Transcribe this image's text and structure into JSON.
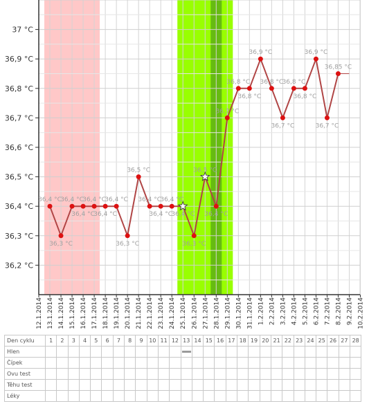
{
  "chart_data": {
    "type": "line",
    "x": [
      "12.1.2014",
      "13.1.2014",
      "14.1.2014",
      "15.1.2014",
      "16.1.2014",
      "17.1.2014",
      "18.1.2014",
      "19.1.2014",
      "20.1.2014",
      "21.1.2014",
      "22.1.2014",
      "23.1.2014",
      "24.1.2014",
      "25.1.2014",
      "26.1.2014",
      "27.1.2014",
      "28.1.2014",
      "29.1.2014",
      "30.1.2014",
      "31.1.2014",
      "1.2.2014",
      "2.2.2014",
      "3.2.2014",
      "4.2.2014",
      "5.2.2014",
      "6.2.2014",
      "7.2.2014",
      "8.2.2014",
      "9.2.2014",
      "10.2.2014"
    ],
    "series": [
      {
        "values": [
          null,
          36.4,
          36.3,
          36.4,
          36.4,
          36.4,
          36.4,
          36.4,
          36.3,
          36.5,
          36.4,
          36.4,
          36.4,
          36.4,
          36.3,
          36.5,
          36.4,
          36.7,
          36.8,
          36.8,
          36.9,
          36.8,
          36.7,
          36.8,
          36.8,
          36.9,
          36.7,
          36.85,
          null,
          null
        ],
        "labels": [
          "",
          "36,4 °C",
          "36,3 °C",
          "36,4 °C",
          "36,4 °C",
          "36,4 °C",
          "36,4 °C",
          "36,4 °C",
          "36,3 °C",
          "36,5 °C",
          "36,4 °C",
          "36,4 °C",
          "36,4 °C",
          "36,4 °C",
          "36,3 °C",
          "36,5 °C",
          "36,4 °C",
          "36,7 °C",
          "36,8 °C",
          "36,8 °C",
          "36,9 °C",
          "36,8 °C",
          "36,7 °C",
          "36,8 °C",
          "36,8 °C",
          "36,9 °C",
          "36,7 °C",
          "36,85 °C",
          "",
          ""
        ],
        "label_side": [
          "",
          "above",
          "below",
          "above",
          "below",
          "above",
          "below",
          "above",
          "below",
          "above",
          "above",
          "below",
          "above",
          "below",
          "below",
          "above",
          "below",
          "above",
          "above",
          "below",
          "above",
          "above",
          "below",
          "above",
          "below",
          "above",
          "below",
          "above",
          "",
          ""
        ],
        "star_markers": [
          "25.1.2014",
          "27.1.2014"
        ]
      }
    ],
    "y_ticks": [
      36.2,
      36.3,
      36.4,
      36.5,
      36.6,
      36.7,
      36.8,
      36.9,
      37.0
    ],
    "y_tick_labels": [
      "36,2 °C",
      "36,3 °C",
      "36,4 °C",
      "36,5 °C",
      "36,6 °C",
      "36,7 °C",
      "36,8 °C",
      "36,9 °C",
      "37 °C"
    ],
    "ylim": [
      36.1,
      37.1
    ],
    "grid": true,
    "bands": [
      {
        "start": "13.1.2014",
        "end": "17.1.2014",
        "color": "#ffc8c8"
      },
      {
        "start": "25.1.2014",
        "end": "29.1.2014",
        "color": "#99ff00"
      },
      {
        "start": "28.1.2014",
        "end": "28.1.2014",
        "color": "#66bb11"
      }
    ],
    "line_color": "#b04545",
    "point_color": "#dd1111",
    "label_color": "#a0a0a0",
    "extension": {
      "from": "8.2.2014",
      "to": "9.2.2014",
      "value": 36.85
    }
  },
  "table": {
    "header_label": "Den cyklu",
    "days": [
      "1",
      "2",
      "3",
      "4",
      "5",
      "6",
      "7",
      "8",
      "9",
      "10",
      "11",
      "12",
      "13",
      "14",
      "15",
      "16",
      "17",
      "18",
      "19",
      "20",
      "21",
      "22",
      "23",
      "24",
      "25",
      "26",
      "27",
      "28"
    ],
    "rows": [
      {
        "label": "Hlen",
        "marks": [
          13
        ]
      },
      {
        "label": "Čípek",
        "marks": []
      },
      {
        "label": "Ovu test",
        "marks": []
      },
      {
        "label": "Těhu test",
        "marks": []
      },
      {
        "label": "Léky",
        "marks": []
      }
    ]
  }
}
